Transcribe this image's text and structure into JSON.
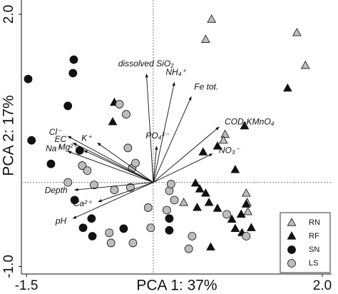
{
  "chart_data": {
    "type": "scatter",
    "x_label": "PCA 1: 37%",
    "y_label": "PCA 2: 17%",
    "xlim": [
      -1.56,
      2.11
    ],
    "ylim": [
      -1.09,
      2.17
    ],
    "xticks": [
      -1.5,
      {
        "value": 2.0,
        "label": "2.0"
      }
    ],
    "yticks": [
      {
        "value": -1.0,
        "label": "-1.0"
      },
      {
        "value": 2.0,
        "label": "2.0"
      }
    ],
    "series": [
      {
        "name": "RN",
        "marker": "triangle",
        "color": "#bdbdbd",
        "x": [
          0.69,
          0.62,
          1.7,
          1.8,
          0.85,
          0.83,
          1.1,
          1.11,
          1.12,
          0.36
        ],
        "y": [
          1.94,
          1.7,
          1.78,
          1.39,
          0.57,
          0.5,
          -0.13,
          -0.24,
          -0.35,
          -0.24
        ]
      },
      {
        "name": "RF",
        "marker": "triangle",
        "color": "#111111",
        "x": [
          1.59,
          -0.48,
          -0.46,
          0.76,
          0.59,
          1.08,
          0.97,
          0.5,
          0.55,
          0.62,
          0.66,
          0.52,
          0.76,
          1.1,
          1.04,
          0.93,
          0.97,
          1.05,
          0.68,
          1.16
        ],
        "y": [
          1.12,
          0.72,
          0.95,
          0.43,
          0.36,
          0.67,
          0.15,
          -0.01,
          -0.08,
          -0.13,
          -0.24,
          -0.3,
          -0.31,
          -0.26,
          -0.38,
          -0.44,
          -0.55,
          -0.6,
          -0.77,
          -0.54
        ]
      },
      {
        "name": "SN",
        "marker": "circle",
        "color": "#111111",
        "x": [
          -0.94,
          -1.48,
          -1.01,
          -0.95,
          -1.44,
          -1.21,
          -0.87,
          -0.93,
          -0.73,
          -0.83,
          -0.72,
          -0.35,
          0.19,
          0.19
        ],
        "y": [
          1.46,
          1.23,
          0.91,
          1.3,
          0.5,
          0.22,
          0.38,
          -0.21,
          -0.43,
          -0.54,
          -0.64,
          -0.55,
          -0.57,
          -0.43
        ]
      },
      {
        "name": "LS",
        "marker": "circle",
        "color": "#bdbdbd",
        "x": [
          -0.4,
          -0.32,
          -0.25,
          -0.46,
          -0.84,
          -1.01,
          -0.7,
          -0.27,
          -0.21,
          -0.06,
          0.19,
          0.25,
          0.16,
          -0.03,
          -0.24,
          -0.5,
          -0.52,
          0.42,
          0.46,
          0.87,
          1.1,
          -0.3,
          -0.78,
          0.21
        ],
        "y": [
          0.93,
          0.81,
          0.17,
          -0.09,
          0.2,
          0.0,
          -0.03,
          -0.06,
          0.23,
          -0.3,
          -0.1,
          -0.21,
          -0.33,
          -0.54,
          -0.72,
          -0.72,
          -0.6,
          -0.79,
          -0.64,
          -0.38,
          -0.64,
          0.41,
          0.14,
          -0.02
        ]
      }
    ],
    "loadings": [
      {
        "name": "dissolved SiO₂",
        "x": -0.08,
        "y": 1.29
      },
      {
        "name": "NH₄⁺",
        "x": 0.25,
        "y": 1.19
      },
      {
        "name": "Fe tot.",
        "x": 0.45,
        "y": 1.02
      },
      {
        "name": "COD-KMnO₄",
        "x": 0.78,
        "y": 0.66
      },
      {
        "name": "PO₄³⁻",
        "x": 0.04,
        "y": 0.43
      },
      {
        "name": "NO₃⁻",
        "x": 0.7,
        "y": 0.34
      },
      {
        "name": "K⁺",
        "x": -0.66,
        "y": 0.47
      },
      {
        "name": "Mg²⁺",
        "x": -0.82,
        "y": 0.38
      },
      {
        "name": "Cl⁻",
        "x": -1.01,
        "y": 0.55
      },
      {
        "name": "EC",
        "x": -0.95,
        "y": 0.47
      },
      {
        "name": "Na⁺",
        "x": -1.01,
        "y": 0.37
      },
      {
        "name": "Depth",
        "x": -0.93,
        "y": -0.09
      },
      {
        "name": "Ca²⁺",
        "x": -0.65,
        "y": -0.23
      },
      {
        "name": "pH",
        "x": -0.95,
        "y": -0.43
      }
    ],
    "legend": "lower right"
  }
}
